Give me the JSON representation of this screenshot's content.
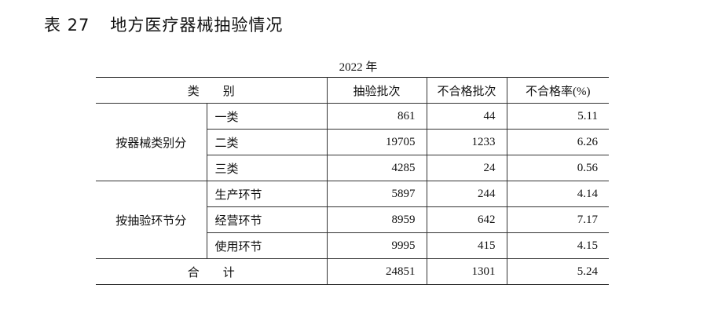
{
  "title": {
    "number": "表 27",
    "text": "地方医疗器械抽验情况"
  },
  "year": "2022 年",
  "headers": {
    "category": "类 别",
    "sampled": "抽验批次",
    "failed": "不合格批次",
    "rate": "不合格率(%)"
  },
  "groups": [
    {
      "label": "按器械类别分",
      "rows": [
        {
          "name": "一类",
          "sampled": "861",
          "failed": "44",
          "rate": "5.11"
        },
        {
          "name": "二类",
          "sampled": "19705",
          "failed": "1233",
          "rate": "6.26"
        },
        {
          "name": "三类",
          "sampled": "4285",
          "failed": "24",
          "rate": "0.56"
        }
      ]
    },
    {
      "label": "按抽验环节分",
      "rows": [
        {
          "name": "生产环节",
          "sampled": "5897",
          "failed": "244",
          "rate": "4.14"
        },
        {
          "name": "经营环节",
          "sampled": "8959",
          "failed": "642",
          "rate": "7.17"
        },
        {
          "name": "使用环节",
          "sampled": "9995",
          "failed": "415",
          "rate": "4.15"
        }
      ]
    }
  ],
  "total": {
    "label": "合 计",
    "sampled": "24851",
    "failed": "1301",
    "rate": "5.24"
  }
}
